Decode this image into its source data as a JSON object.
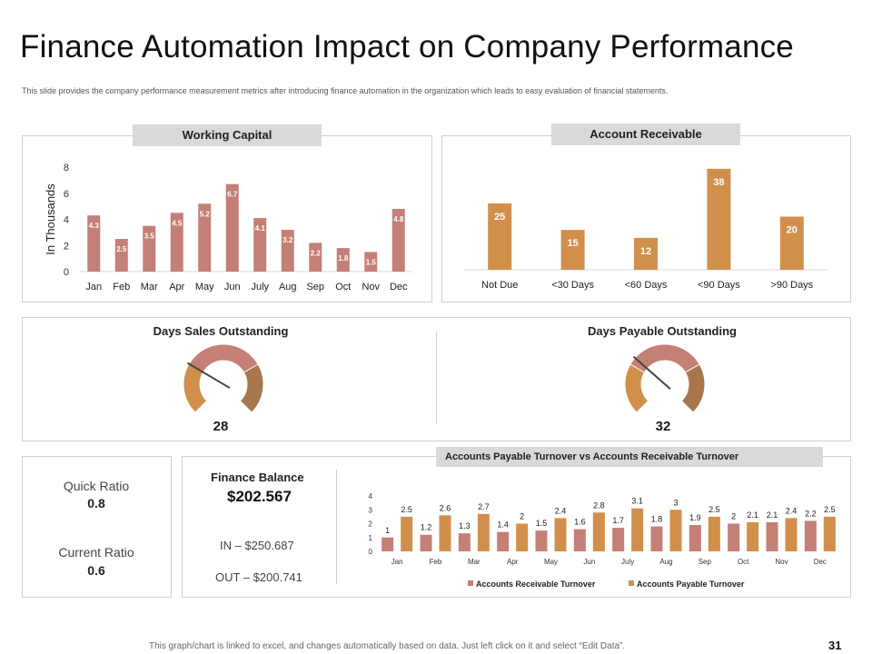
{
  "page": {
    "title": "Finance Automation Impact on Company Performance",
    "subtitle": "This slide provides the company performance measurement metrics after introducing finance automation in the organization which leads to easy evaluation of financial statements.",
    "footer": "This graph/chart is linked to excel, and changes automatically based on data. Just left click on it and select “Edit Data”.",
    "slide_number": "31"
  },
  "colors": {
    "rose": "#c47f76",
    "orange": "#d18f4c",
    "brown": "#a8764e",
    "grid": "#d9d9d9"
  },
  "sections": {
    "working_capital_tab": "Working Capital",
    "account_receivable_tab": "Account Receivable",
    "dso_heading": "Days Sales Outstanding",
    "dpo_heading": "Days Payable Outstanding",
    "turnover_tab": "Accounts  Payable Turnover vs Accounts  Receivable Turnover"
  },
  "gauges": {
    "dso_value": "28",
    "dpo_value": "32"
  },
  "ratios": {
    "quick_label": "Quick Ratio",
    "quick_value": "0.8",
    "current_label": "Current Ratio",
    "current_value": "0.6"
  },
  "finance_balance": {
    "label": "Finance Balance",
    "value": "$202.567",
    "in_text": "IN – $250.687",
    "out_text": "OUT – $200.741"
  },
  "chart_data": [
    {
      "id": "working_capital",
      "type": "bar",
      "title": "Working Capital",
      "ylabel": "In Thousands",
      "ylim": [
        0,
        8
      ],
      "yticks": [
        0,
        2,
        4,
        6,
        8
      ],
      "categories": [
        "Jan",
        "Feb",
        "Mar",
        "Apr",
        "May",
        "Jun",
        "July",
        "Aug",
        "Sep",
        "Oct",
        "Nov",
        "Dec"
      ],
      "values": [
        4.3,
        2.5,
        3.5,
        4.5,
        5.2,
        6.7,
        4.1,
        3.2,
        2.2,
        1.8,
        1.5,
        4.8
      ]
    },
    {
      "id": "account_receivable",
      "type": "bar",
      "title": "Account Receivable",
      "ylim": [
        0,
        40
      ],
      "categories": [
        "Not Due",
        "<30 Days",
        "<60 Days",
        "<90 Days",
        ">90 Days"
      ],
      "values": [
        25,
        15,
        12,
        38,
        20
      ]
    },
    {
      "id": "turnover",
      "type": "bar",
      "title": "Accounts  Payable Turnover vs Accounts  Receivable Turnover",
      "ylim": [
        0,
        4
      ],
      "yticks": [
        0,
        1,
        2,
        3,
        4
      ],
      "categories": [
        "Jan",
        "Feb",
        "Mar",
        "Apr",
        "May",
        "Jun",
        "July",
        "Aug",
        "Sep",
        "Oct",
        "Nov",
        "Dec"
      ],
      "series": [
        {
          "name": "Accounts Receivable Turnover",
          "values": [
            1,
            1.2,
            1.3,
            1.4,
            1.5,
            1.6,
            1.7,
            1.8,
            1.9,
            2,
            2.1,
            2.2
          ]
        },
        {
          "name": "Accounts Payable Turnover",
          "values": [
            2.5,
            2.6,
            2.7,
            2,
            2.4,
            2.8,
            3.1,
            3,
            2.5,
            2.1,
            2.4,
            2.5
          ]
        }
      ]
    },
    {
      "id": "dso_gauge",
      "type": "pie",
      "title": "Days Sales Outstanding",
      "value": 28
    },
    {
      "id": "dpo_gauge",
      "type": "pie",
      "title": "Days Payable Outstanding",
      "value": 32
    }
  ]
}
